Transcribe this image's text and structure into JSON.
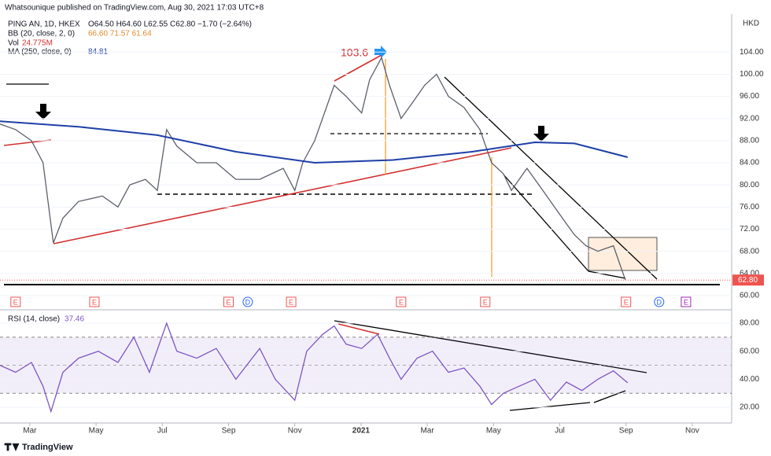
{
  "header": {
    "publisher": "Whatsounique published on TradingView.com, Aug 30, 2021 17:03 UTC+8",
    "ohlc": "O64.50 H64.60 L62.55 C62.80 −1.70 (−2.64%)",
    "bb_name": "BB (20, close, 2, 0)",
    "bb_values": "66.60  71.57  61.64",
    "vol_name": "Vol",
    "vol_value": "24.775M",
    "ma_value": "84.81",
    "rsi_value": "37.46",
    "currency": "HKD",
    "brand": "TradingView"
  },
  "chart_data": [
    {
      "type": "line",
      "ylim": [
        58,
        112
      ],
      "yticks": [
        {
          "value": 60,
          "label": "60.00"
        },
        {
          "value": 64,
          "label": "64.00"
        },
        {
          "value": 68,
          "label": "68.00"
        },
        {
          "value": 72,
          "label": "72.00"
        },
        {
          "value": 76,
          "label": "76.00"
        },
        {
          "value": 80,
          "label": "80.00"
        },
        {
          "value": 84,
          "label": "84.00"
        },
        {
          "value": 88,
          "label": "88.00"
        },
        {
          "value": 92,
          "label": "92.00"
        },
        {
          "value": 96,
          "label": "96.00"
        },
        {
          "value": 100,
          "label": "100.00"
        },
        {
          "value": 104,
          "label": "104.00"
        }
      ],
      "xlim": [
        -0.9,
        21.19
      ],
      "series": [
        {
          "name": "PING AN, 1D, HKEX",
          "color": "#5d606b",
          "x": [
            -0.9,
            -0.43,
            0.05,
            0.4,
            0.71,
            1.0,
            1.47,
            2.19,
            2.66,
            3.02,
            3.49,
            3.85,
            4.13,
            4.44,
            5.04,
            5.63,
            6.22,
            6.94,
            7.65,
            8.0,
            8.24,
            8.6,
            9.19,
            9.55,
            10.02,
            10.26,
            10.62,
            10.86,
            11.21,
            11.57,
            11.92,
            12.28,
            12.64,
            13.11,
            13.59,
            13.94,
            14.3,
            14.54,
            15.01,
            15.49,
            15.96,
            16.44,
            16.79,
            17.15,
            17.62,
            17.98
          ],
          "values": [
            91,
            90,
            88,
            84,
            69.5,
            74,
            77,
            78,
            76,
            80,
            81,
            79,
            90,
            87,
            84,
            84,
            81,
            81,
            83,
            79,
            84,
            88,
            98,
            96,
            93,
            99,
            103,
            98,
            92,
            95,
            98,
            100,
            96,
            94,
            90,
            84,
            82,
            79,
            83,
            79,
            75,
            71,
            69,
            68,
            69,
            62.8
          ]
        },
        {
          "name": "MA (250, close, 0)",
          "color": "#1e3fa8",
          "x": [
            -0.9,
            1.47,
            3.85,
            6.22,
            8.6,
            10.97,
            13.35,
            15.25,
            16.44,
            18.05
          ],
          "values": [
            91.5,
            90.5,
            89,
            86,
            84,
            84.5,
            86,
            87.7,
            87.5,
            85
          ]
        }
      ],
      "last_price": 62.8,
      "last_price_label": "62.80",
      "annotation": "103.6",
      "events": [
        {
          "x": -0.43,
          "label": "E"
        },
        {
          "x": 1.95,
          "label": "E"
        },
        {
          "x": 6.0,
          "label": "E"
        },
        {
          "x": 6.58,
          "label": "D"
        },
        {
          "x": 7.89,
          "label": "E"
        },
        {
          "x": 11.21,
          "label": "E"
        },
        {
          "x": 13.75,
          "label": "E"
        },
        {
          "x": 18.0,
          "label": "E"
        },
        {
          "x": 19.0,
          "label": "D"
        },
        {
          "x": 19.81,
          "label": "E"
        }
      ]
    },
    {
      "type": "line",
      "ylim": [
        10.5,
        86.2
      ],
      "yticks": [
        {
          "value": 20,
          "label": "20.00"
        },
        {
          "value": 40,
          "label": "40.00"
        },
        {
          "value": 60,
          "label": "60.00"
        },
        {
          "value": 80,
          "label": "80.00"
        }
      ],
      "xlim": [
        -0.9,
        21.19
      ],
      "xticks": [
        {
          "value": 0,
          "label": "Mar"
        },
        {
          "value": 2,
          "label": "May"
        },
        {
          "value": 4,
          "label": "Jul"
        },
        {
          "value": 6,
          "label": "Sep"
        },
        {
          "value": 8,
          "label": "Nov"
        },
        {
          "value": 10,
          "label": "2021"
        },
        {
          "value": 12,
          "label": "Mar"
        },
        {
          "value": 14,
          "label": "May"
        },
        {
          "value": 16,
          "label": "Jul"
        },
        {
          "value": 18,
          "label": "Sep"
        },
        {
          "value": 20,
          "label": "Nov"
        }
      ],
      "bands": [
        30,
        70
      ],
      "midline": 50,
      "series": [
        {
          "name": "RSI (14, close)",
          "color": "#7e57c2",
          "x": [
            -0.9,
            -0.43,
            0.05,
            0.4,
            0.64,
            1.0,
            1.47,
            2.07,
            2.66,
            3.14,
            3.61,
            4.13,
            4.44,
            5.04,
            5.63,
            6.22,
            6.94,
            7.41,
            8.0,
            8.36,
            8.84,
            9.19,
            9.55,
            10.02,
            10.5,
            10.86,
            11.21,
            11.69,
            12.16,
            12.64,
            13.11,
            13.59,
            13.94,
            14.3,
            14.77,
            15.25,
            15.72,
            16.2,
            16.67,
            17.15,
            17.62,
            18.05
          ],
          "values": [
            50,
            45,
            52,
            35,
            17,
            45,
            55,
            60,
            52,
            70,
            45,
            80,
            60,
            55,
            62,
            40,
            62,
            40,
            25,
            60,
            72,
            78,
            65,
            62,
            72,
            55,
            40,
            55,
            60,
            45,
            48,
            35,
            22,
            30,
            35,
            40,
            25,
            38,
            32,
            40,
            46,
            37.46
          ]
        }
      ]
    }
  ]
}
